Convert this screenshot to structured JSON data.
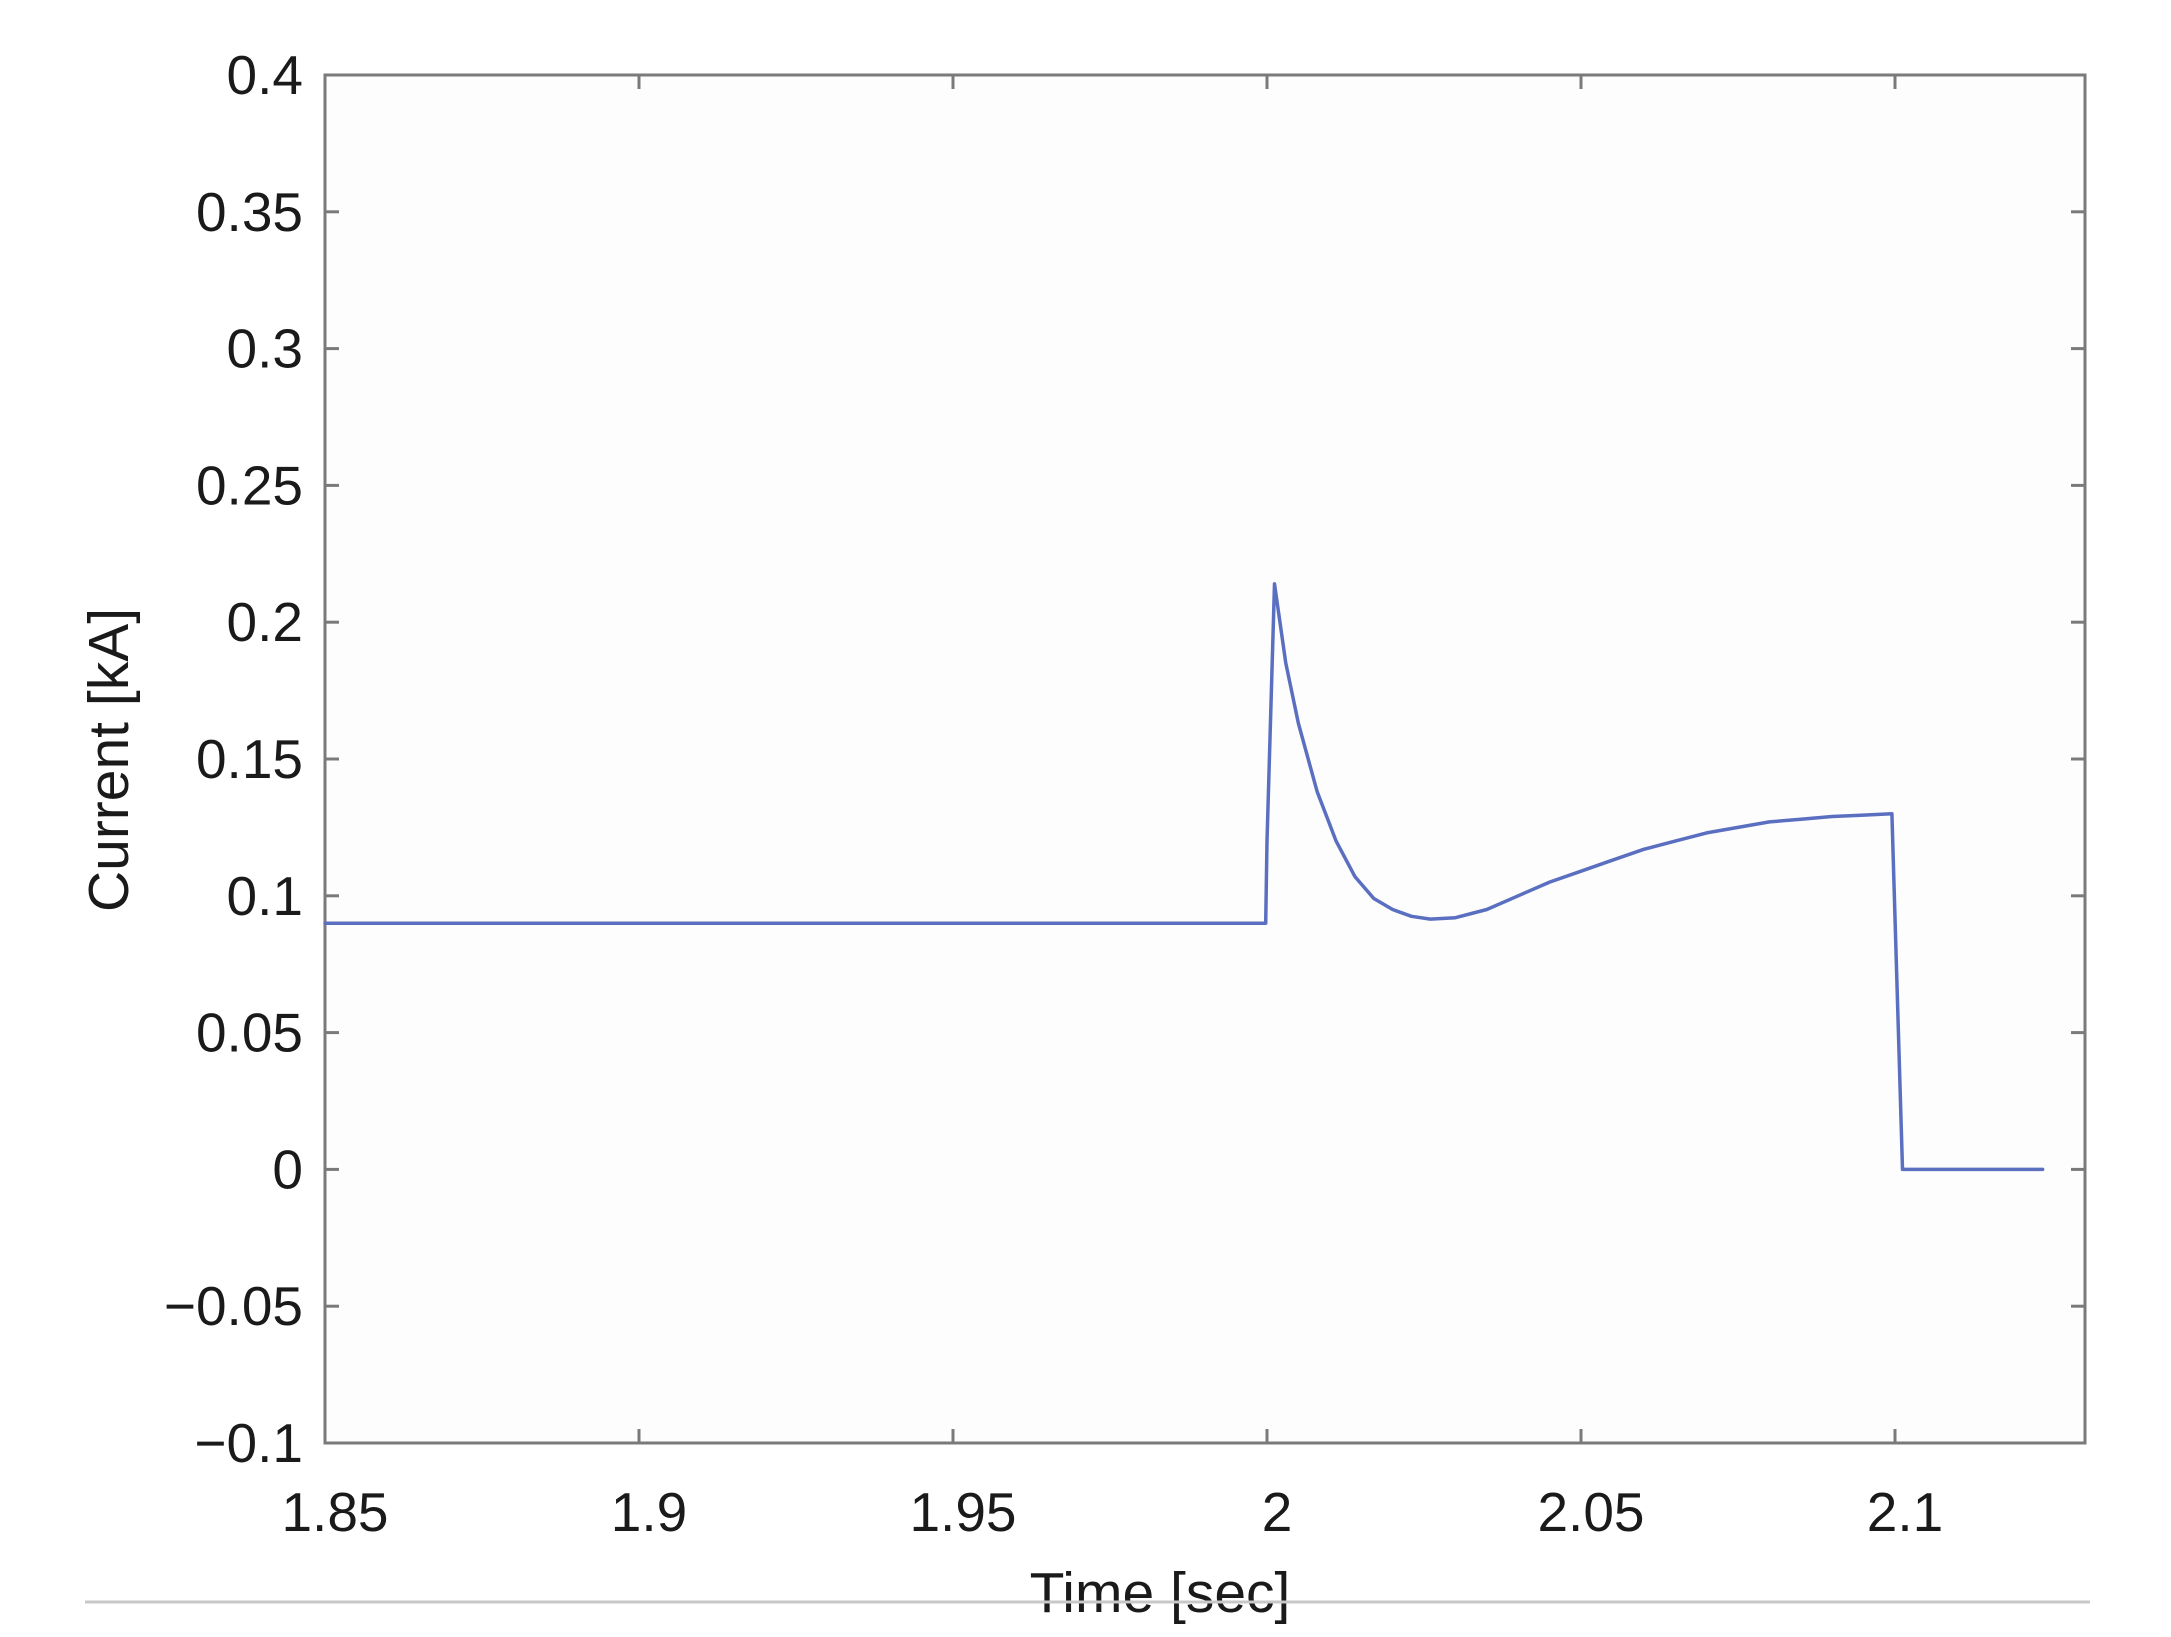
{
  "chart_data": {
    "type": "line",
    "title": "",
    "xlabel": "Time [sec]",
    "ylabel": "Current [kA]",
    "xlim": [
      1.85,
      2.13
    ],
    "ylim": [
      -0.1,
      0.4
    ],
    "xticks": [
      1.85,
      1.9,
      1.95,
      2.0,
      2.05,
      2.1
    ],
    "xtick_labels": [
      "1.85",
      "1.9",
      "1.95",
      "2",
      "2.05",
      "2.1"
    ],
    "yticks": [
      -0.1,
      -0.05,
      0,
      0.05,
      0.1,
      0.15,
      0.2,
      0.25,
      0.3,
      0.35,
      0.4
    ],
    "ytick_labels": [
      "−0.1",
      "−0.05",
      "0",
      "0.05",
      "0.1",
      "0.15",
      "0.2",
      "0.25",
      "0.3",
      "0.35",
      "0.4"
    ],
    "grid": false,
    "legend": "none",
    "series": [
      {
        "color": "#5b6fc0",
        "x": [
          1.85,
          1.9,
          1.95,
          1.9998,
          2.0,
          2.0012,
          2.003,
          2.005,
          2.008,
          2.011,
          2.014,
          2.017,
          2.02,
          2.023,
          2.026,
          2.03,
          2.035,
          2.04,
          2.045,
          2.05,
          2.055,
          2.06,
          2.065,
          2.07,
          2.075,
          2.08,
          2.085,
          2.09,
          2.095,
          2.0995,
          2.1012,
          2.106,
          2.11,
          2.115,
          2.1235
        ],
        "y": [
          0.09,
          0.09,
          0.09,
          0.09,
          0.12,
          0.214,
          0.185,
          0.163,
          0.138,
          0.12,
          0.107,
          0.099,
          0.095,
          0.0925,
          0.0915,
          0.092,
          0.095,
          0.1,
          0.105,
          0.109,
          0.113,
          0.117,
          0.12,
          0.123,
          0.125,
          0.127,
          0.128,
          0.129,
          0.1295,
          0.13,
          0.0,
          0.0,
          0.0,
          0.0,
          0.0
        ]
      }
    ]
  }
}
